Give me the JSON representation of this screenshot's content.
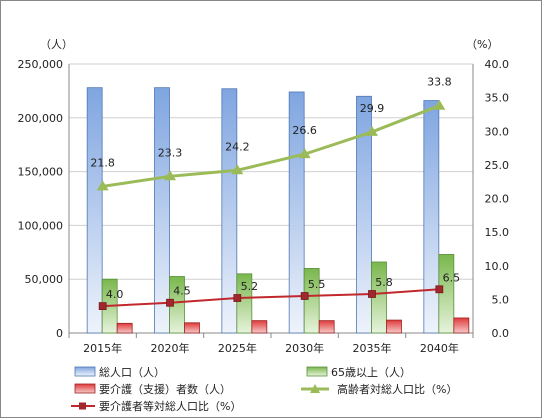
{
  "chart_data": {
    "type": "bar",
    "categories": [
      "2015年",
      "2020年",
      "2025年",
      "2030年",
      "2035年",
      "2040年"
    ],
    "left_axis": {
      "unit_label": "（人）",
      "ylim": [
        0,
        250000
      ],
      "ticks": [
        "0",
        "50,000",
        "100,000",
        "150,000",
        "200,000",
        "250,000"
      ]
    },
    "right_axis": {
      "unit_label": "（%）",
      "ylim": [
        0,
        40
      ],
      "ticks": [
        "0.0",
        "5.0",
        "10.0",
        "15.0",
        "20.0",
        "25.0",
        "30.0",
        "35.0",
        "40.0"
      ]
    },
    "bar_series": [
      {
        "name": "総人口（人）",
        "values": [
          228000,
          228000,
          227000,
          224000,
          220000,
          216000
        ],
        "color": "#a9c4ec"
      },
      {
        "name": "65歳以上（人）",
        "values": [
          50000,
          52500,
          55000,
          60000,
          66000,
          73000
        ],
        "color": "#9fcf78"
      },
      {
        "name": "要介護（支援）者数（人）",
        "values": [
          9000,
          9500,
          11500,
          11500,
          12000,
          14000
        ],
        "color": "#e04a4a"
      }
    ],
    "line_series": [
      {
        "name": "高齢者対総人口比（%）",
        "values": [
          21.8,
          23.3,
          24.2,
          26.6,
          29.9,
          33.8
        ],
        "labels": [
          "21.8",
          "23.3",
          "24.2",
          "26.6",
          "29.9",
          "33.8"
        ],
        "color": "#9bbb59",
        "marker": "triangle"
      },
      {
        "name": "要介護者等対総人口比（%）",
        "values": [
          4.0,
          4.5,
          5.2,
          5.5,
          5.8,
          6.5
        ],
        "labels": [
          "4.0",
          "4.5",
          "5.2",
          "5.5",
          "5.8",
          "6.5"
        ],
        "color": "#c0282d",
        "marker": "square"
      }
    ],
    "grid": "horizontal",
    "legend_position": "bottom"
  }
}
